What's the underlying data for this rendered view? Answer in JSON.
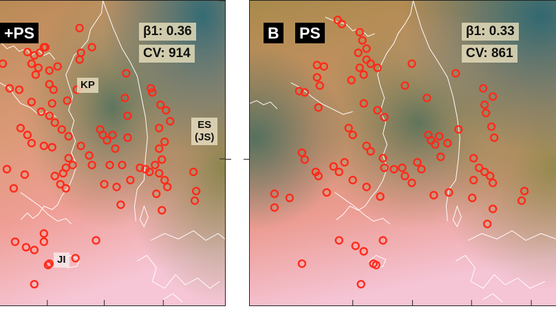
{
  "panels": {
    "left": {
      "title": "+PS",
      "beta1": "β1: 0.36",
      "cv": "CV: 914",
      "labels": {
        "kp": "KP",
        "es_line1": "ES",
        "es_line2": "(JS)",
        "ji": "JI"
      }
    },
    "right": {
      "title_b": "B",
      "title_ps": "PS",
      "beta1": "β1: 0.33",
      "cv": "CV: 861"
    }
  },
  "colors": {
    "deep_teal": "#2f6f78",
    "olive": "#7e8a4a",
    "tan": "#c79a62",
    "salmon": "#e49a86",
    "pink": "#f4c3cf",
    "station_red": "#ff2a1a",
    "coastline": "#ffffff"
  },
  "icons": [
    "station-circle-marker"
  ]
}
